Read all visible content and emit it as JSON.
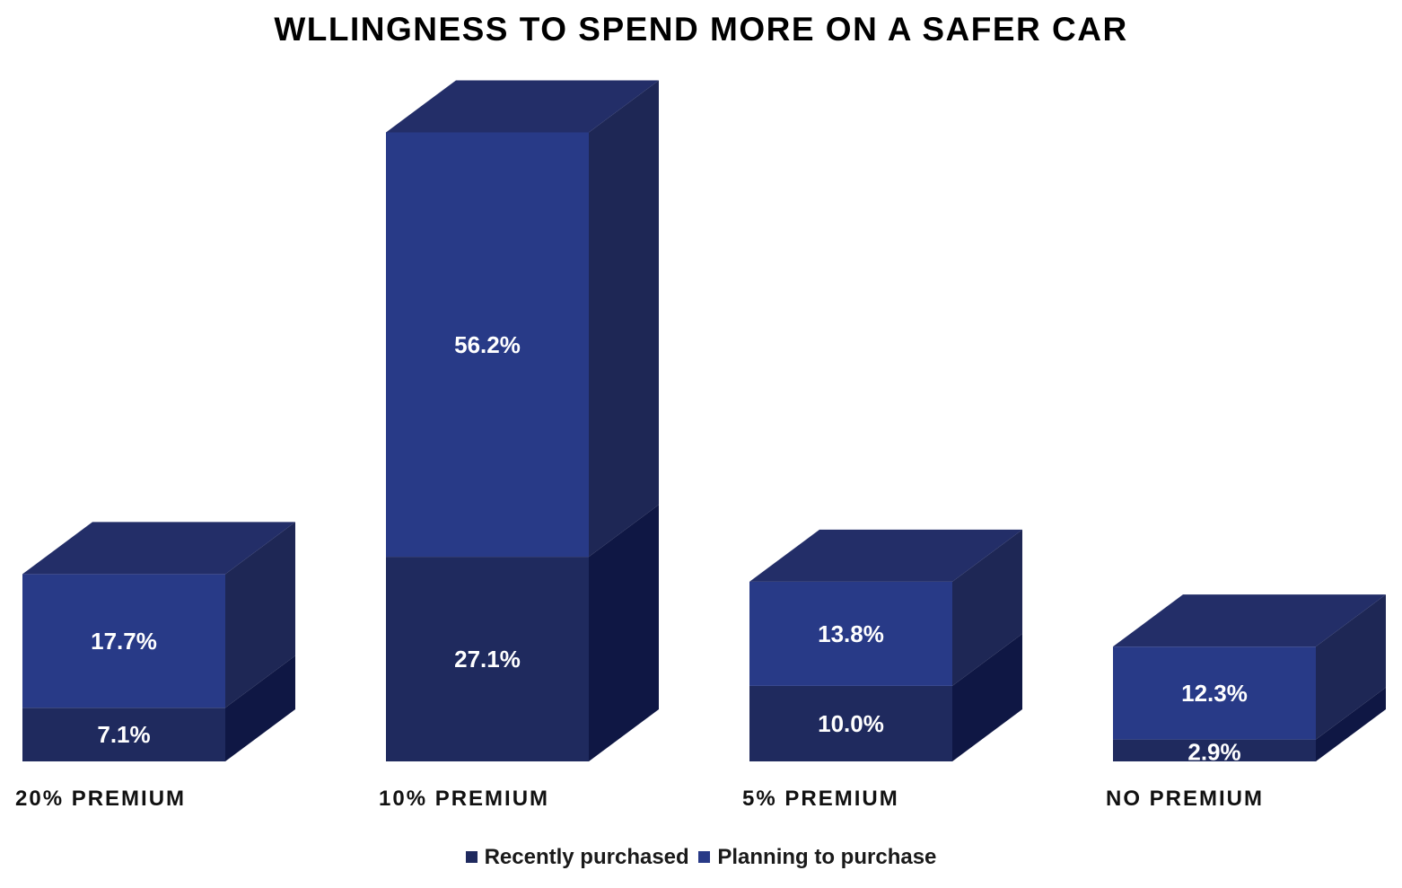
{
  "chart_data": {
    "type": "bar",
    "stacked": true,
    "three_d": true,
    "title": "WLLINGNESS TO SPEND MORE ON A SAFER CAR",
    "categories": [
      "20% PREMIUM",
      "10% PREMIUM",
      "5% PREMIUM",
      "NO PREMIUM"
    ],
    "series": [
      {
        "name": "Recently purchased",
        "values": [
          7.1,
          27.1,
          10.0,
          2.9
        ],
        "labels": [
          "7.1%",
          "27.1%",
          "10.0%",
          "2.9%"
        ]
      },
      {
        "name": "Planning to purchase",
        "values": [
          17.7,
          56.2,
          13.8,
          12.3
        ],
        "labels": [
          "17.7%",
          "56.2%",
          "13.8%",
          "12.3%"
        ]
      }
    ],
    "ylim": [
      0,
      100
    ],
    "grid": false,
    "legend": "bottom",
    "colors": {
      "recent_front": "#1f2a5e",
      "recent_side": "#0f1744",
      "plan_front": "#283a87",
      "plan_side": "#1e2755",
      "top": "#232e68",
      "label": "#ffffff"
    }
  }
}
